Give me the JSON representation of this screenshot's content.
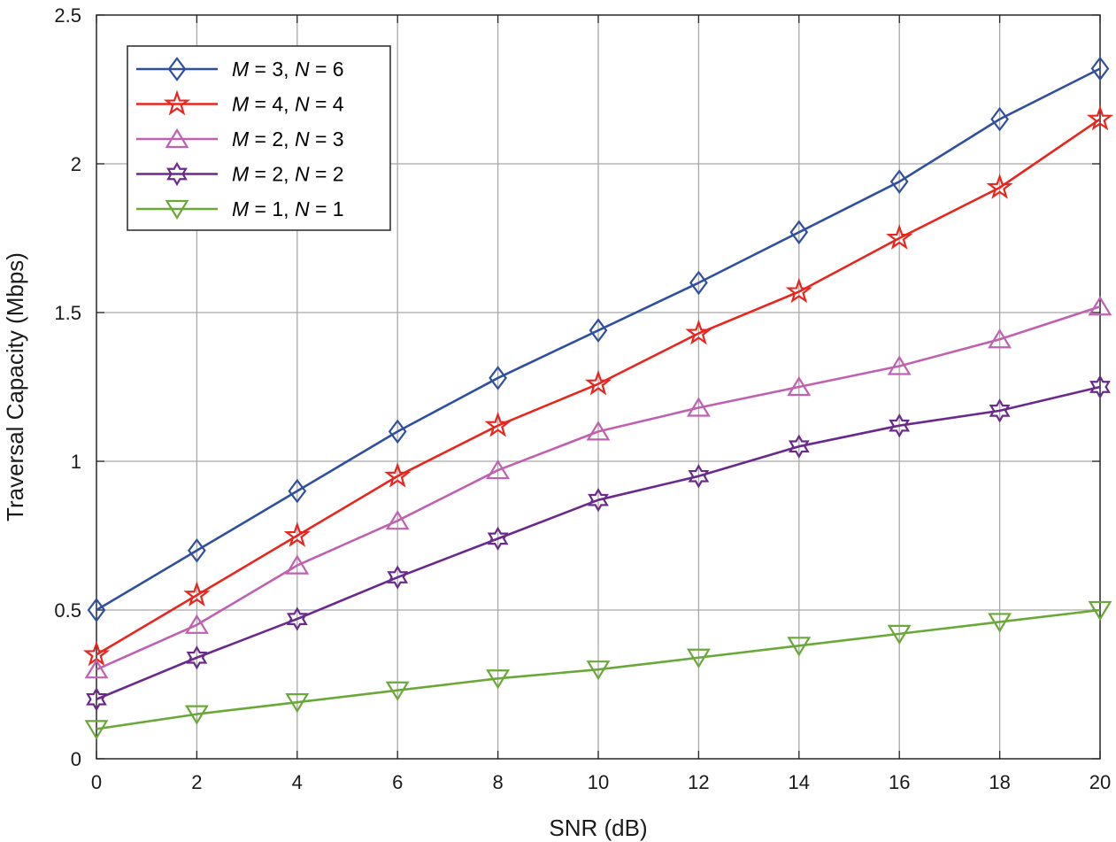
{
  "chart_data": {
    "type": "line",
    "title": "",
    "xlabel": "SNR (dB)",
    "ylabel": "Traversal Capacity (Mbps)",
    "xlim": [
      0,
      20
    ],
    "ylim": [
      0,
      2.5
    ],
    "xticks": [
      0,
      2,
      4,
      6,
      8,
      10,
      12,
      14,
      16,
      18,
      20
    ],
    "yticks": [
      0,
      0.5,
      1,
      1.5,
      2,
      2.5
    ],
    "xtick_labels": [
      "0",
      "2",
      "4",
      "6",
      "8",
      "10",
      "12",
      "14",
      "16",
      "18",
      "20"
    ],
    "ytick_labels": [
      "0",
      "0.5",
      "1",
      "1.5",
      "2",
      "2.5"
    ],
    "grid": true,
    "legend_position": "top-left",
    "x": [
      0,
      2,
      4,
      6,
      8,
      10,
      12,
      14,
      16,
      18,
      20
    ],
    "series": [
      {
        "name": "M = 3, N = 6",
        "label_parts": {
          "m_symbol": "M",
          "m_value": " = 3, ",
          "n_symbol": "N",
          "n_value": " = 6"
        },
        "color": "#2f4f9f",
        "marker": "diamond",
        "values": [
          0.5,
          0.7,
          0.9,
          1.1,
          1.28,
          1.44,
          1.6,
          1.77,
          1.94,
          2.15,
          2.32
        ]
      },
      {
        "name": "M = 4, N = 4",
        "label_parts": {
          "m_symbol": "M",
          "m_value": " = 4, ",
          "n_symbol": "N",
          "n_value": " = 4"
        },
        "color": "#e8261e",
        "marker": "pentagram",
        "values": [
          0.35,
          0.55,
          0.75,
          0.95,
          1.12,
          1.26,
          1.43,
          1.57,
          1.75,
          1.92,
          2.15
        ]
      },
      {
        "name": "M = 2, N = 3",
        "label_parts": {
          "m_symbol": "M",
          "m_value": " = 2, ",
          "n_symbol": "N",
          "n_value": " = 3"
        },
        "color": "#c060b0",
        "marker": "triangle-up",
        "values": [
          0.3,
          0.45,
          0.65,
          0.8,
          0.97,
          1.1,
          1.18,
          1.25,
          1.32,
          1.41,
          1.52
        ]
      },
      {
        "name": "M = 2, N = 2",
        "label_parts": {
          "m_symbol": "M",
          "m_value": " = 2, ",
          "n_symbol": "N",
          "n_value": " = 2"
        },
        "color": "#6a2a8c",
        "marker": "hexagram",
        "values": [
          0.2,
          0.34,
          0.47,
          0.61,
          0.74,
          0.87,
          0.95,
          1.05,
          1.12,
          1.17,
          1.25
        ]
      },
      {
        "name": "M = 1, N = 1",
        "label_parts": {
          "m_symbol": "M",
          "m_value": " = 1, ",
          "n_symbol": "N",
          "n_value": " = 1"
        },
        "color": "#6aa83a",
        "marker": "triangle-down",
        "values": [
          0.1,
          0.15,
          0.19,
          0.23,
          0.27,
          0.3,
          0.34,
          0.38,
          0.42,
          0.46,
          0.5
        ]
      }
    ]
  }
}
